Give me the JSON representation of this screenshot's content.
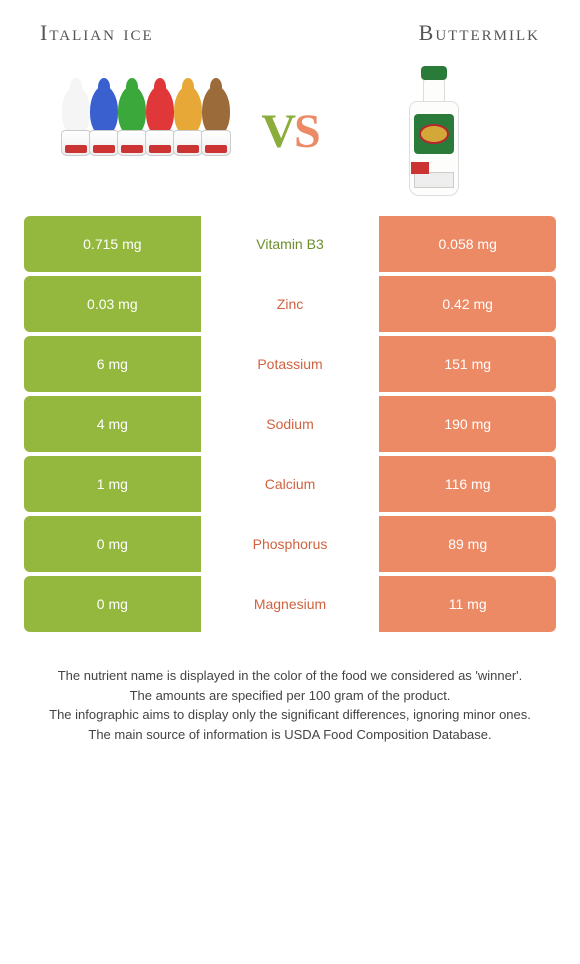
{
  "header": {
    "left_title": "Italian ice",
    "right_title": "Buttermilk"
  },
  "vs": {
    "v": "V",
    "s": "S"
  },
  "colors": {
    "left_bar": "#94b83e",
    "right_bar": "#ed8a66",
    "nutrient_left_win": "#6d8f2a",
    "nutrient_right_win": "#d1623f",
    "cone_colors": [
      "#f5f5f5",
      "#3a5fcf",
      "#3aa83a",
      "#e03838",
      "#e8a838",
      "#9b6b3a"
    ]
  },
  "rows": [
    {
      "nutrient": "Vitamin B3",
      "left": "0.715 mg",
      "right": "0.058 mg",
      "winner": "left"
    },
    {
      "nutrient": "Zinc",
      "left": "0.03 mg",
      "right": "0.42 mg",
      "winner": "right"
    },
    {
      "nutrient": "Potassium",
      "left": "6 mg",
      "right": "151 mg",
      "winner": "right"
    },
    {
      "nutrient": "Sodium",
      "left": "4 mg",
      "right": "190 mg",
      "winner": "right"
    },
    {
      "nutrient": "Calcium",
      "left": "1 mg",
      "right": "116 mg",
      "winner": "right"
    },
    {
      "nutrient": "Phosphorus",
      "left": "0 mg",
      "right": "89 mg",
      "winner": "right"
    },
    {
      "nutrient": "Magnesium",
      "left": "0 mg",
      "right": "11 mg",
      "winner": "right"
    }
  ],
  "footer": {
    "line1": "The nutrient name is displayed in the color of the food we considered as 'winner'.",
    "line2": "The amounts are specified per 100 gram of the product.",
    "line3": "The infographic aims to display only the significant differences, ignoring minor ones.",
    "line4": "The main source of information is USDA Food Composition Database."
  }
}
